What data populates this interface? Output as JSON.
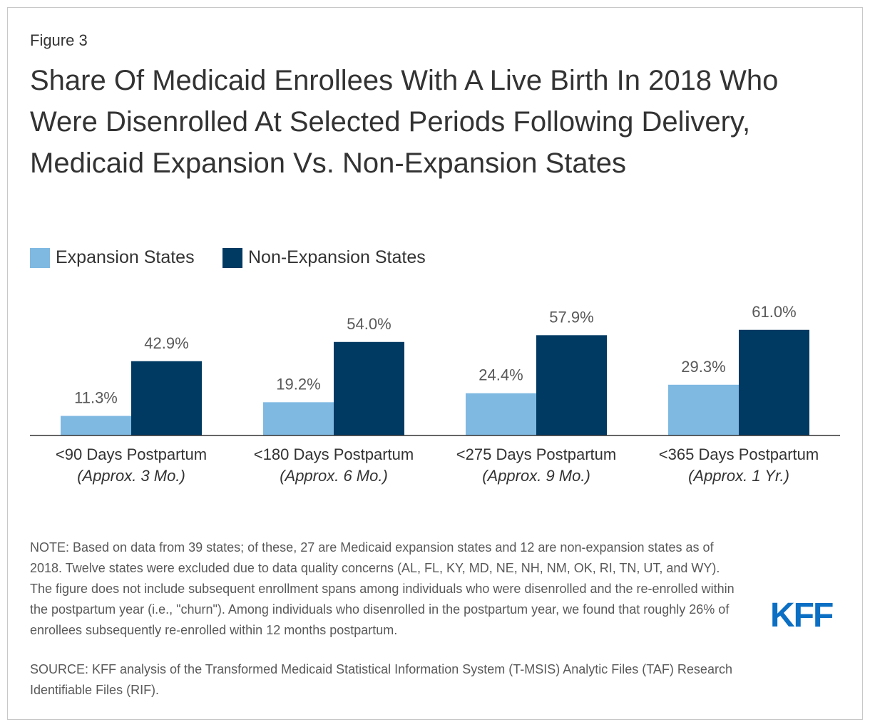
{
  "figure_label": "Figure 3",
  "logo": "KFF",
  "note": "NOTE: Based on data from 39 states; of these, 27 are Medicaid expansion states and 12 are non-expansion states as of 2018. Twelve states were excluded due to data quality concerns (AL, FL, KY, MD, NE, NH, NM, OK, RI, TN, UT, and WY). The figure does not include subsequent enrollment spans among individuals who were disenrolled and the re-enrolled within the postpartum year (i.e., \"churn\"). Among individuals who disenrolled in the postpartum year, we found that roughly 26% of enrollees subsequently re-enrolled within 12 months postpartum.",
  "source": "SOURCE: KFF analysis of the Transformed Medicaid Statistical Information System (T-MSIS) Analytic Files (TAF) Research Identifiable Files (RIF).",
  "chart_data": {
    "type": "bar",
    "title": "Share Of Medicaid Enrollees With A Live Birth In 2018 Who Were Disenrolled At Selected Periods Following Delivery, Medicaid Expansion Vs. Non-Expansion States",
    "categories": [
      "<90 Days Postpartum",
      "<180 Days Postpartum",
      "<275 Days Postpartum",
      "<365 Days Postpartum"
    ],
    "category_notes": [
      "(Approx. 3 Mo.)",
      "(Approx. 6 Mo.)",
      "(Approx. 9 Mo.)",
      "(Approx. 1 Yr.)"
    ],
    "series": [
      {
        "name": "Expansion States",
        "color": "#7fb9e2",
        "values": [
          11.3,
          19.2,
          24.4,
          29.3
        ],
        "value_labels": [
          "11.3%",
          "19.2%",
          "24.4%",
          "29.3%"
        ]
      },
      {
        "name": "Non-Expansion States",
        "color": "#003a63",
        "values": [
          42.9,
          54.0,
          57.9,
          61.0
        ],
        "value_labels": [
          "42.9%",
          "54.0%",
          "57.9%",
          "61.0%"
        ]
      }
    ],
    "legend_position": "top-left"
  }
}
